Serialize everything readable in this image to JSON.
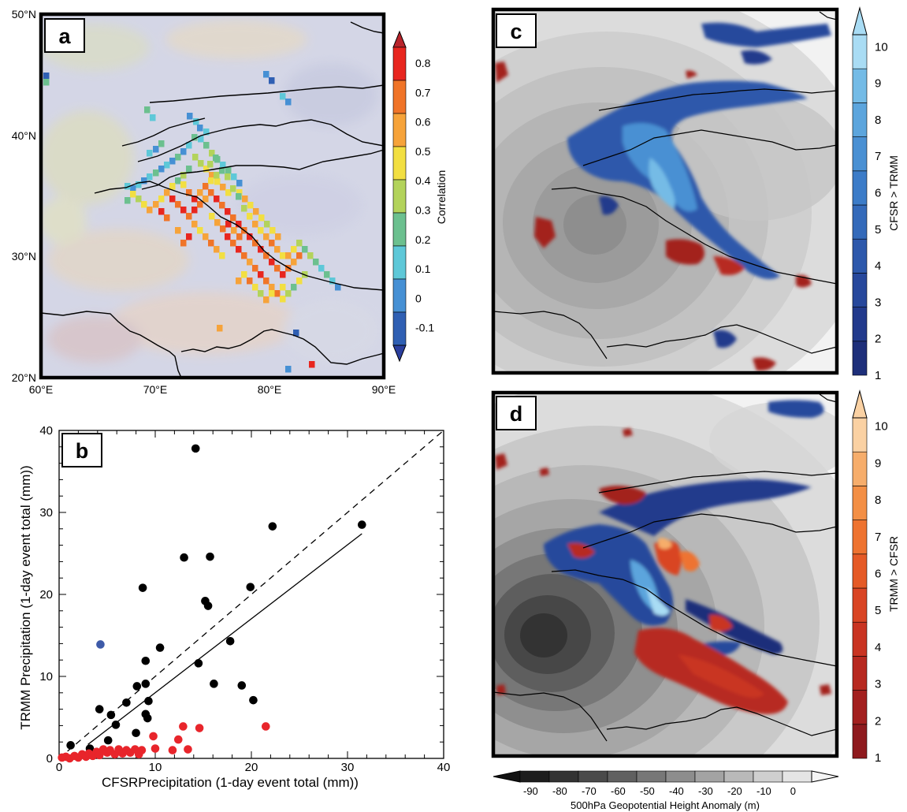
{
  "panels": {
    "a": {
      "label": "a",
      "lat_ticks": [
        "50°N",
        "40°N",
        "30°N",
        "20°N"
      ],
      "lon_ticks": [
        "60°E",
        "70°E",
        "80°E",
        "90°E"
      ],
      "colorbar": {
        "title": "Correlation",
        "ticks": [
          "0.8",
          "0.7",
          "0.6",
          "0.5",
          "0.4",
          "0.3",
          "0.2",
          "0.1",
          "0",
          "-0.1"
        ],
        "colors": [
          "#2b3f9e",
          "#2f5fb3",
          "#4690d4",
          "#5ec8d8",
          "#6cc08f",
          "#b3d35b",
          "#f2df42",
          "#f6a33a",
          "#f07428",
          "#e8261f",
          "#b8242b"
        ]
      }
    },
    "b": {
      "label": "b",
      "xlabel": "CFSRPrecipitation (1-day event total (mm))",
      "ylabel": "TRMM Precipitation (1-day event total (mm))",
      "xticks": [
        "0",
        "10",
        "20",
        "30",
        "40"
      ],
      "yticks": [
        "0",
        "10",
        "20",
        "30",
        "40"
      ]
    },
    "c": {
      "label": "c",
      "colorbar": {
        "title": "CFSR > TRMM",
        "ticks": [
          "1",
          "2",
          "3",
          "4",
          "5",
          "6",
          "7",
          "8",
          "9",
          "10"
        ],
        "colors": [
          "#1e2f7a",
          "#223a8c",
          "#27489c",
          "#2d58ab",
          "#346aba",
          "#3c7cc8",
          "#4a90d3",
          "#5ca5dd",
          "#74bbe6",
          "#a9dcf4"
        ]
      }
    },
    "d": {
      "label": "d",
      "colorbar": {
        "title": "TRMM > CFSR",
        "ticks": [
          "1",
          "2",
          "3",
          "4",
          "5",
          "6",
          "7",
          "8",
          "9",
          "10"
        ],
        "colors": [
          "#8e1a1e",
          "#a3201f",
          "#b72920",
          "#c93422",
          "#d94524",
          "#e55a26",
          "#ee7330",
          "#f38f45",
          "#f6ad6b",
          "#fad1a3"
        ]
      },
      "height_colorbar": {
        "title": "500hPa Geopotential Height Anomaly (m)",
        "ticks": [
          "-90",
          "-80",
          "-70",
          "-60",
          "-50",
          "-40",
          "-30",
          "-20",
          "-10",
          "0"
        ],
        "colors": [
          "#1d1d1d",
          "#333333",
          "#4a4a4a",
          "#606060",
          "#777777",
          "#8d8d8d",
          "#a3a3a3",
          "#b9b9b9",
          "#cfcfcf",
          "#e5e5e5"
        ]
      }
    }
  },
  "chart_data": [
    {
      "type": "heatmap",
      "panel": "a",
      "xlim": [
        60,
        90
      ],
      "ylim": [
        20,
        50
      ],
      "colorbar_range": [
        -0.1,
        0.8
      ],
      "colorbar_label": "Correlation"
    },
    {
      "type": "scatter",
      "panel": "b",
      "xlabel": "CFSRPrecipitation (1-day event total (mm))",
      "ylabel": "TRMM Precipitation (1-day event total (mm))",
      "xlim": [
        0,
        40
      ],
      "ylim": [
        0,
        40
      ],
      "series": [
        {
          "color": "#000000",
          "points": [
            [
              1.2,
              1.6
            ],
            [
              3.2,
              1.2
            ],
            [
              4.2,
              6.0
            ],
            [
              5.1,
              2.2
            ],
            [
              5.4,
              5.3
            ],
            [
              5.9,
              4.1
            ],
            [
              7.0,
              6.8
            ],
            [
              8.0,
              3.1
            ],
            [
              8.1,
              8.8
            ],
            [
              8.7,
              20.8
            ],
            [
              9.0,
              9.1
            ],
            [
              9.0,
              5.4
            ],
            [
              9.0,
              11.9
            ],
            [
              9.2,
              4.9
            ],
            [
              9.3,
              7.0
            ],
            [
              10.5,
              13.5
            ],
            [
              13.0,
              24.5
            ],
            [
              14.2,
              37.8
            ],
            [
              14.5,
              11.6
            ],
            [
              15.2,
              19.2
            ],
            [
              15.5,
              18.6
            ],
            [
              15.7,
              24.6
            ],
            [
              16.1,
              9.1
            ],
            [
              17.8,
              14.3
            ],
            [
              19.0,
              8.9
            ],
            [
              19.9,
              20.9
            ],
            [
              20.2,
              7.1
            ],
            [
              22.2,
              28.3
            ],
            [
              31.5,
              28.5
            ]
          ]
        },
        {
          "color": "#e8252b",
          "points": [
            [
              0.3,
              0.1
            ],
            [
              0.7,
              0.2
            ],
            [
              1.1,
              0.0
            ],
            [
              1.6,
              0.3
            ],
            [
              2.0,
              0.1
            ],
            [
              2.4,
              0.5
            ],
            [
              2.8,
              0.2
            ],
            [
              3.1,
              0.6
            ],
            [
              3.5,
              0.3
            ],
            [
              3.9,
              0.8
            ],
            [
              4.2,
              0.4
            ],
            [
              4.6,
              1.1
            ],
            [
              5.0,
              0.7
            ],
            [
              5.3,
              1.0
            ],
            [
              5.8,
              0.5
            ],
            [
              6.2,
              1.1
            ],
            [
              6.6,
              0.6
            ],
            [
              7.0,
              1.0
            ],
            [
              7.4,
              0.7
            ],
            [
              7.9,
              1.1
            ],
            [
              8.3,
              0.5
            ],
            [
              8.6,
              1.0
            ],
            [
              9.8,
              2.7
            ],
            [
              10.0,
              1.2
            ],
            [
              11.8,
              1.0
            ],
            [
              12.4,
              2.3
            ],
            [
              12.9,
              3.9
            ],
            [
              13.4,
              1.1
            ],
            [
              14.6,
              3.7
            ],
            [
              21.5,
              3.9
            ]
          ]
        },
        {
          "color": "#3d5aa8",
          "points": [
            [
              4.3,
              13.9
            ]
          ]
        }
      ],
      "lines": [
        {
          "style": "dashed",
          "from": [
            0,
            0
          ],
          "to": [
            40,
            40
          ]
        },
        {
          "style": "solid",
          "from": [
            3.0,
            1.7
          ],
          "to": [
            31.5,
            27.4
          ]
        }
      ]
    },
    {
      "type": "heatmap",
      "panel": "c",
      "colorbar_range": [
        1,
        10
      ],
      "colorbar_label": "CFSR > TRMM",
      "height_anomaly_range": [
        -90,
        0
      ]
    },
    {
      "type": "heatmap",
      "panel": "d",
      "colorbar_range": [
        1,
        10
      ],
      "colorbar_label": "TRMM > CFSR",
      "height_anomaly_range": [
        -90,
        0
      ]
    }
  ]
}
